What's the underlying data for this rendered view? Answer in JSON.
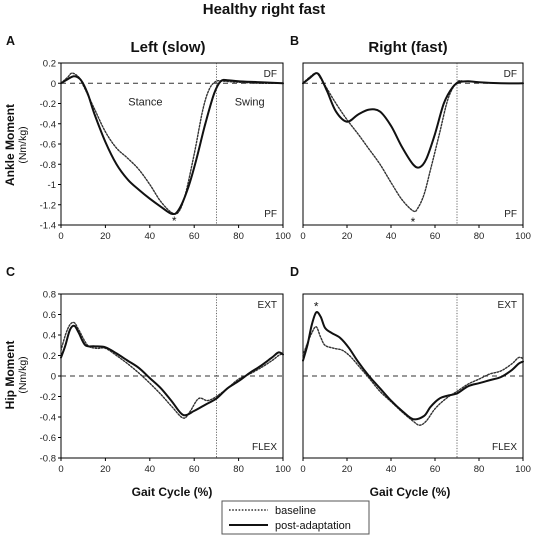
{
  "title": "Healthy right fast",
  "legend": [
    "baseline",
    "post-adaptation"
  ],
  "chart_data": [
    {
      "id": "A",
      "type": "line",
      "panel_label": "A",
      "title": "Left (slow)",
      "ylabel": "Ankle Moment",
      "yunit": "(Nm/kg)",
      "xlabel": "",
      "xlim": [
        0,
        100
      ],
      "ylim": [
        -1.4,
        0.2
      ],
      "xticks": [
        0,
        20,
        40,
        60,
        80,
        100
      ],
      "yticks": [
        0.2,
        0,
        -0.2,
        -0.4,
        -0.6,
        -0.8,
        -1,
        -1.2,
        -1.4
      ],
      "top_right_label": "DF",
      "bottom_right_label": "PF",
      "phase_labels": [
        "Stance",
        "Swing"
      ],
      "toe_off": 70,
      "star": {
        "x": 51,
        "y": -1.36
      },
      "series": [
        {
          "name": "baseline",
          "style": "dotted",
          "x": [
            0,
            3,
            5,
            8,
            10,
            15,
            20,
            25,
            30,
            35,
            40,
            45,
            50,
            53,
            56,
            60,
            64,
            67,
            70,
            73,
            80,
            90,
            100
          ],
          "y": [
            0,
            0.06,
            0.1,
            0.06,
            -0.02,
            -0.25,
            -0.48,
            -0.64,
            -0.74,
            -0.85,
            -1.0,
            -1.17,
            -1.28,
            -1.27,
            -1.1,
            -0.7,
            -0.25,
            -0.05,
            0.02,
            0.02,
            0.01,
            0,
            0
          ]
        },
        {
          "name": "post-adaptation",
          "style": "solid",
          "x": [
            0,
            3,
            6,
            9,
            12,
            15,
            20,
            25,
            30,
            35,
            40,
            45,
            50,
            53,
            57,
            61,
            65,
            69,
            72,
            75,
            80,
            90,
            100
          ],
          "y": [
            0,
            0.04,
            0.07,
            0.03,
            -0.1,
            -0.3,
            -0.58,
            -0.8,
            -0.95,
            -1.05,
            -1.14,
            -1.22,
            -1.29,
            -1.25,
            -1.05,
            -0.75,
            -0.4,
            -0.1,
            0.02,
            0.03,
            0.02,
            0.01,
            0
          ]
        }
      ]
    },
    {
      "id": "B",
      "type": "line",
      "panel_label": "B",
      "title": "Right (fast)",
      "ylabel": "",
      "yunit": "",
      "xlabel": "",
      "xlim": [
        0,
        100
      ],
      "ylim": [
        -1.4,
        0.2
      ],
      "xticks": [
        0,
        20,
        40,
        60,
        80,
        100
      ],
      "yticks": [],
      "top_right_label": "DF",
      "bottom_right_label": "PF",
      "phase_labels": [],
      "toe_off": 70,
      "star": {
        "x": 50,
        "y": -1.37
      },
      "series": [
        {
          "name": "baseline",
          "style": "dotted",
          "x": [
            0,
            3,
            6,
            8,
            10,
            15,
            20,
            25,
            30,
            35,
            40,
            45,
            50,
            52,
            55,
            58,
            62,
            66,
            70,
            73,
            80,
            90,
            100
          ],
          "y": [
            0,
            0.06,
            0.1,
            0.05,
            -0.02,
            -0.2,
            -0.36,
            -0.5,
            -0.65,
            -0.8,
            -0.98,
            -1.15,
            -1.26,
            -1.24,
            -1.1,
            -0.85,
            -0.5,
            -0.15,
            0.01,
            0.02,
            0.01,
            0,
            0
          ]
        },
        {
          "name": "post-adaptation",
          "style": "solid",
          "x": [
            0,
            3,
            6,
            8,
            11,
            15,
            20,
            25,
            30,
            35,
            40,
            45,
            50,
            53,
            56,
            60,
            64,
            68,
            71,
            75,
            80,
            90,
            100
          ],
          "y": [
            0,
            0.05,
            0.1,
            0.06,
            -0.08,
            -0.28,
            -0.38,
            -0.31,
            -0.26,
            -0.28,
            -0.42,
            -0.63,
            -0.8,
            -0.83,
            -0.75,
            -0.5,
            -0.2,
            -0.04,
            0.01,
            0.02,
            0.01,
            0,
            0
          ]
        }
      ]
    },
    {
      "id": "C",
      "type": "line",
      "panel_label": "C",
      "title": "",
      "ylabel": "Hip Moment",
      "yunit": "(Nm/kg)",
      "xlabel": "Gait Cycle (%)",
      "xlim": [
        0,
        100
      ],
      "ylim": [
        -0.8,
        0.8
      ],
      "xticks": [
        0,
        20,
        40,
        60,
        80,
        100
      ],
      "yticks": [
        0.8,
        0.6,
        0.4,
        0.2,
        0,
        -0.2,
        -0.4,
        -0.6,
        -0.8
      ],
      "top_right_label": "EXT",
      "bottom_right_label": "FLEX",
      "phase_labels": [],
      "toe_off": 70,
      "star": null,
      "series": [
        {
          "name": "baseline",
          "style": "dotted",
          "x": [
            0,
            2,
            4,
            6,
            8,
            12,
            16,
            20,
            25,
            30,
            35,
            40,
            45,
            50,
            55,
            58,
            62,
            66,
            70,
            75,
            80,
            85,
            90,
            95,
            98,
            100
          ],
          "y": [
            0.25,
            0.4,
            0.5,
            0.52,
            0.45,
            0.3,
            0.27,
            0.27,
            0.2,
            0.12,
            0.03,
            -0.07,
            -0.18,
            -0.3,
            -0.41,
            -0.35,
            -0.22,
            -0.24,
            -0.2,
            -0.12,
            -0.03,
            0.02,
            0.08,
            0.15,
            0.2,
            0.22
          ]
        },
        {
          "name": "post-adaptation",
          "style": "solid",
          "x": [
            0,
            2,
            4,
            6,
            8,
            11,
            15,
            20,
            25,
            30,
            35,
            40,
            45,
            50,
            55,
            60,
            65,
            70,
            75,
            80,
            85,
            90,
            95,
            98,
            100
          ],
          "y": [
            0.18,
            0.3,
            0.45,
            0.49,
            0.42,
            0.3,
            0.29,
            0.28,
            0.22,
            0.15,
            0.08,
            -0.02,
            -0.12,
            -0.25,
            -0.38,
            -0.34,
            -0.28,
            -0.22,
            -0.12,
            -0.05,
            0.03,
            0.1,
            0.18,
            0.23,
            0.21
          ]
        }
      ]
    },
    {
      "id": "D",
      "type": "line",
      "panel_label": "D",
      "title": "",
      "ylabel": "",
      "yunit": "",
      "xlabel": "Gait Cycle (%)",
      "xlim": [
        0,
        100
      ],
      "ylim": [
        -0.8,
        0.8
      ],
      "xticks": [
        0,
        20,
        40,
        60,
        80,
        100
      ],
      "yticks": [],
      "top_right_label": "EXT",
      "bottom_right_label": "FLEX",
      "phase_labels": [],
      "toe_off": 70,
      "star": {
        "x": 6,
        "y": 0.68
      },
      "series": [
        {
          "name": "baseline",
          "style": "dotted",
          "x": [
            0,
            2,
            4,
            6,
            8,
            10,
            14,
            18,
            22,
            26,
            30,
            35,
            40,
            45,
            50,
            53,
            56,
            60,
            65,
            70,
            75,
            80,
            85,
            90,
            95,
            98,
            100
          ],
          "y": [
            0.2,
            0.32,
            0.42,
            0.48,
            0.38,
            0.3,
            0.27,
            0.25,
            0.18,
            0.08,
            -0.02,
            -0.15,
            -0.25,
            -0.35,
            -0.44,
            -0.48,
            -0.44,
            -0.32,
            -0.22,
            -0.15,
            -0.08,
            -0.03,
            0.02,
            0.05,
            0.12,
            0.18,
            0.17
          ]
        },
        {
          "name": "post-adaptation",
          "style": "solid",
          "x": [
            0,
            2,
            4,
            6,
            8,
            10,
            13,
            17,
            21,
            25,
            30,
            35,
            40,
            45,
            50,
            55,
            58,
            62,
            66,
            70,
            75,
            80,
            85,
            90,
            95,
            98,
            100
          ],
          "y": [
            0.15,
            0.3,
            0.5,
            0.62,
            0.58,
            0.47,
            0.42,
            0.37,
            0.27,
            0.14,
            0.0,
            -0.12,
            -0.24,
            -0.34,
            -0.42,
            -0.39,
            -0.3,
            -0.22,
            -0.19,
            -0.17,
            -0.1,
            -0.07,
            -0.04,
            -0.01,
            0.06,
            0.12,
            0.14
          ]
        }
      ]
    }
  ]
}
